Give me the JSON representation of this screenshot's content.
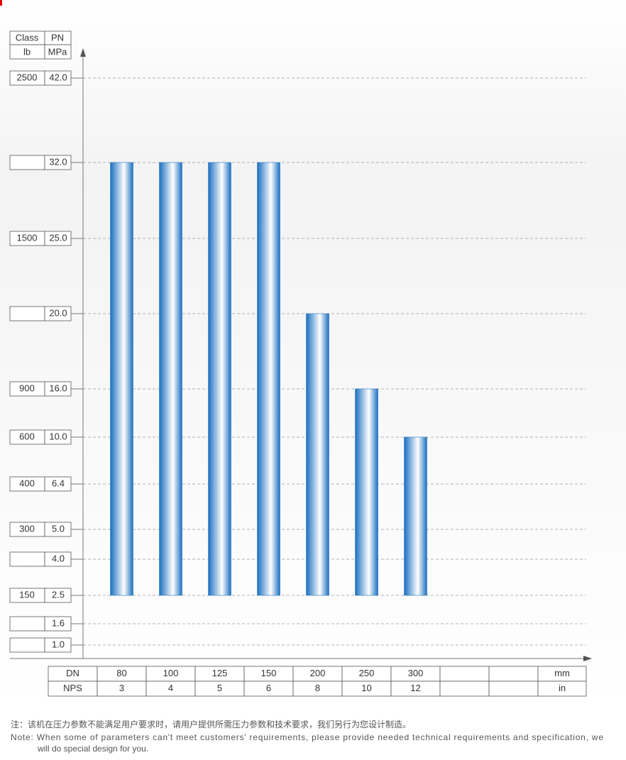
{
  "chart_data": {
    "type": "bar",
    "class_header": "Class",
    "pn_header": "PN",
    "class_unit": "lb",
    "pn_unit": "MPa",
    "yticks": [
      {
        "value": 42,
        "label": "42.0"
      },
      {
        "value": 32,
        "label": "32.0"
      },
      {
        "value": 25,
        "label": "25.0"
      },
      {
        "value": 20,
        "label": "20.0"
      },
      {
        "value": 16,
        "label": "16.0"
      },
      {
        "value": 10,
        "label": "10.0"
      },
      6.4,
      {
        "value": 5,
        "label": "5.0"
      },
      {
        "value": 4,
        "label": "4.0"
      },
      2.5,
      1.6,
      {
        "value": 1,
        "label": "1.0"
      }
    ],
    "class_labels": [
      2500,
      null,
      1500,
      null,
      900,
      600,
      400,
      300,
      null,
      150,
      null,
      null
    ],
    "dn_label": "DN",
    "nps_label": "NPS",
    "dn_unit": "mm",
    "nps_unit": "in",
    "categories": [
      "80",
      "100",
      "125",
      "150",
      "200",
      "250",
      "300"
    ],
    "nps": [
      "3",
      "4",
      "5",
      "6",
      "8",
      "10",
      "12"
    ],
    "values": [
      32,
      32,
      32,
      32,
      20,
      16,
      10
    ],
    "bar_base": 2.5,
    "color": "#1a6fc0",
    "grid": true,
    "notes": {
      "cn": "注：该机在压力参数不能满足用户要求时，请用户提供所需压力参数和技术要求，我们另行为您设计制造。",
      "en": [
        "Note: When some of parameters can't meet customers' requirements, please provide needed technical requirements and specification, we",
        "will do special design for you."
      ]
    }
  }
}
